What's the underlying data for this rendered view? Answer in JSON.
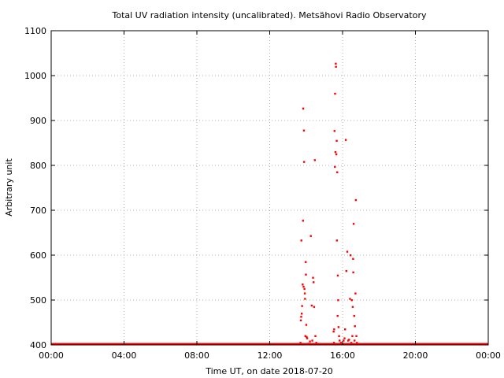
{
  "chart_data": {
    "type": "scatter",
    "title": "Total UV radiation intensity (uncalibrated). Metsähovi Radio Observatory",
    "xlabel": "Time UT, on date 2018-07-20",
    "ylabel": "Arbitrary unit",
    "x_unit": "hours UT",
    "xlim": [
      0,
      24
    ],
    "ylim": [
      400,
      1100
    ],
    "x_ticks": [
      0,
      4,
      8,
      12,
      16,
      20,
      24
    ],
    "x_tick_labels": [
      "00:00",
      "04:00",
      "08:00",
      "12:00",
      "16:00",
      "20:00",
      "00:00"
    ],
    "y_ticks": [
      400,
      500,
      600,
      700,
      800,
      900,
      1000,
      1100
    ],
    "y_tick_labels": [
      "400",
      "500",
      "600",
      "700",
      "800",
      "900",
      "1000",
      "1100"
    ],
    "grid": true,
    "marker_color": "#ff0000",
    "baseline": {
      "value": 400,
      "from_hour": 0,
      "to_hour": 24
    },
    "points": [
      {
        "x": 13.68,
        "y": 405
      },
      {
        "x": 13.7,
        "y": 455
      },
      {
        "x": 13.72,
        "y": 463
      },
      {
        "x": 13.73,
        "y": 633
      },
      {
        "x": 13.75,
        "y": 470
      },
      {
        "x": 13.77,
        "y": 487
      },
      {
        "x": 13.8,
        "y": 535
      },
      {
        "x": 13.82,
        "y": 677
      },
      {
        "x": 13.83,
        "y": 927
      },
      {
        "x": 13.85,
        "y": 530
      },
      {
        "x": 13.87,
        "y": 878
      },
      {
        "x": 13.88,
        "y": 808
      },
      {
        "x": 13.9,
        "y": 525
      },
      {
        "x": 13.92,
        "y": 515
      },
      {
        "x": 13.93,
        "y": 503
      },
      {
        "x": 13.95,
        "y": 420
      },
      {
        "x": 13.97,
        "y": 585
      },
      {
        "x": 13.98,
        "y": 557
      },
      {
        "x": 14.0,
        "y": 445
      },
      {
        "x": 14.02,
        "y": 418
      },
      {
        "x": 14.05,
        "y": 415
      },
      {
        "x": 14.1,
        "y": 403
      },
      {
        "x": 14.2,
        "y": 408
      },
      {
        "x": 14.25,
        "y": 643
      },
      {
        "x": 14.3,
        "y": 488
      },
      {
        "x": 14.33,
        "y": 410
      },
      {
        "x": 14.37,
        "y": 550
      },
      {
        "x": 14.4,
        "y": 540
      },
      {
        "x": 14.43,
        "y": 485
      },
      {
        "x": 14.47,
        "y": 812
      },
      {
        "x": 14.5,
        "y": 420
      },
      {
        "x": 14.55,
        "y": 405
      },
      {
        "x": 15.5,
        "y": 430
      },
      {
        "x": 15.52,
        "y": 405
      },
      {
        "x": 15.53,
        "y": 435
      },
      {
        "x": 15.55,
        "y": 877
      },
      {
        "x": 15.57,
        "y": 797
      },
      {
        "x": 15.58,
        "y": 960
      },
      {
        "x": 15.6,
        "y": 830
      },
      {
        "x": 15.62,
        "y": 1027
      },
      {
        "x": 15.63,
        "y": 1020
      },
      {
        "x": 15.65,
        "y": 825
      },
      {
        "x": 15.67,
        "y": 855
      },
      {
        "x": 15.68,
        "y": 633
      },
      {
        "x": 15.7,
        "y": 785
      },
      {
        "x": 15.72,
        "y": 465
      },
      {
        "x": 15.73,
        "y": 555
      },
      {
        "x": 15.75,
        "y": 500
      },
      {
        "x": 15.77,
        "y": 440
      },
      {
        "x": 15.8,
        "y": 420
      },
      {
        "x": 15.83,
        "y": 410
      },
      {
        "x": 15.9,
        "y": 405
      },
      {
        "x": 16.05,
        "y": 410
      },
      {
        "x": 16.1,
        "y": 415
      },
      {
        "x": 16.13,
        "y": 435
      },
      {
        "x": 16.17,
        "y": 857
      },
      {
        "x": 16.2,
        "y": 565
      },
      {
        "x": 16.25,
        "y": 608
      },
      {
        "x": 16.3,
        "y": 410
      },
      {
        "x": 16.35,
        "y": 412
      },
      {
        "x": 16.4,
        "y": 503
      },
      {
        "x": 16.43,
        "y": 600
      },
      {
        "x": 16.47,
        "y": 405
      },
      {
        "x": 16.5,
        "y": 500
      },
      {
        "x": 16.53,
        "y": 420
      },
      {
        "x": 16.55,
        "y": 485
      },
      {
        "x": 16.57,
        "y": 592
      },
      {
        "x": 16.58,
        "y": 562
      },
      {
        "x": 16.6,
        "y": 670
      },
      {
        "x": 16.63,
        "y": 465
      },
      {
        "x": 16.65,
        "y": 410
      },
      {
        "x": 16.67,
        "y": 442
      },
      {
        "x": 16.7,
        "y": 515
      },
      {
        "x": 16.72,
        "y": 723
      },
      {
        "x": 16.75,
        "y": 420
      },
      {
        "x": 16.78,
        "y": 405
      }
    ]
  }
}
